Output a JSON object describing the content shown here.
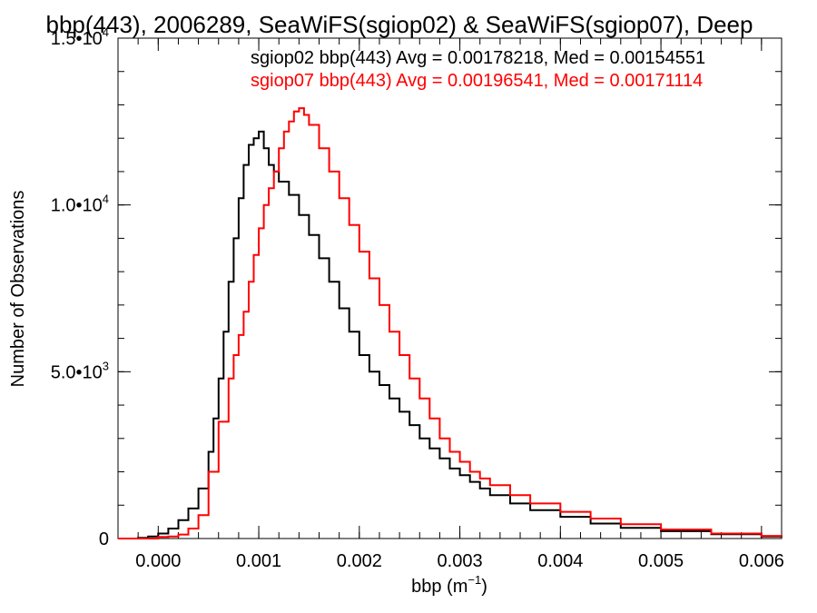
{
  "chart_data": {
    "type": "line",
    "title": "bbp(443), 2006289, SeaWiFS(sgiop02) & SeaWiFS(sgiop07), Deep",
    "xlabel_main": "bbp (m",
    "xlabel_sup": "−1",
    "xlabel_close": ")",
    "ylabel": "Number of Observations",
    "xlim": [
      -0.0004,
      0.0062
    ],
    "ylim": [
      0,
      15000
    ],
    "x_ticks": [
      {
        "value": 0.0,
        "label": "0.000"
      },
      {
        "value": 0.001,
        "label": "0.001"
      },
      {
        "value": 0.002,
        "label": "0.002"
      },
      {
        "value": 0.003,
        "label": "0.003"
      },
      {
        "value": 0.004,
        "label": "0.004"
      },
      {
        "value": 0.005,
        "label": "0.005"
      },
      {
        "value": 0.006,
        "label": "0.006"
      }
    ],
    "y_ticks": [
      {
        "value": 0,
        "base": "0",
        "exp": ""
      },
      {
        "value": 5000,
        "base": "5.0•10",
        "exp": "3"
      },
      {
        "value": 10000,
        "base": "1.0•10",
        "exp": "4"
      },
      {
        "value": 15000,
        "base": "1.5•10",
        "exp": "4"
      }
    ],
    "legend_position": "top-right",
    "series": [
      {
        "name": "sgiop02",
        "color": "#000000",
        "stats_label": "sgiop02 bbp(443) Avg = 0.00178218, Med = 0.00154551",
        "x": [
          -0.0004,
          -0.0003,
          -0.0002,
          -0.0001,
          0.0,
          0.0001,
          0.0002,
          0.0003,
          0.0004,
          0.0005,
          0.00055,
          0.0006,
          0.00065,
          0.0007,
          0.00075,
          0.0008,
          0.00085,
          0.0009,
          0.00095,
          0.001,
          0.00105,
          0.0011,
          0.00115,
          0.0012,
          0.0013,
          0.0014,
          0.0015,
          0.0016,
          0.0017,
          0.0018,
          0.0019,
          0.002,
          0.0021,
          0.0022,
          0.0023,
          0.0024,
          0.0025,
          0.0026,
          0.0027,
          0.0028,
          0.0029,
          0.003,
          0.0031,
          0.0032,
          0.0033,
          0.0035,
          0.0037,
          0.004,
          0.0043,
          0.0046,
          0.005,
          0.0055,
          0.006,
          0.0062
        ],
        "y": [
          0,
          0,
          20,
          60,
          150,
          300,
          550,
          900,
          1500,
          2600,
          3600,
          4800,
          6200,
          7700,
          9000,
          10200,
          11200,
          11800,
          12000,
          12200,
          11700,
          11200,
          11000,
          10700,
          10300,
          9700,
          9100,
          8400,
          7700,
          6900,
          6200,
          5500,
          5000,
          4600,
          4200,
          3800,
          3400,
          3000,
          2700,
          2400,
          2100,
          1900,
          1700,
          1500,
          1300,
          1050,
          850,
          650,
          450,
          320,
          220,
          130,
          60,
          40
        ]
      },
      {
        "name": "sgiop07",
        "color": "#ff0000",
        "stats_label": "sgiop07 bbp(443) Avg = 0.00196541, Med = 0.00171114",
        "x": [
          -0.0004,
          -0.0003,
          -0.0002,
          -0.0001,
          0.0,
          0.0001,
          0.0002,
          0.0003,
          0.0004,
          0.0005,
          0.0006,
          0.0007,
          0.00075,
          0.0008,
          0.00085,
          0.0009,
          0.00095,
          0.001,
          0.00105,
          0.0011,
          0.00115,
          0.0012,
          0.00125,
          0.0013,
          0.00135,
          0.0014,
          0.00145,
          0.0015,
          0.0016,
          0.0017,
          0.0018,
          0.0019,
          0.002,
          0.0021,
          0.0022,
          0.0023,
          0.0024,
          0.0025,
          0.0026,
          0.0027,
          0.0028,
          0.0029,
          0.003,
          0.0031,
          0.0032,
          0.0033,
          0.0035,
          0.0037,
          0.004,
          0.0043,
          0.0046,
          0.005,
          0.0055,
          0.006,
          0.0062
        ],
        "y": [
          0,
          0,
          0,
          0,
          50,
          60,
          120,
          300,
          700,
          2000,
          3500,
          4800,
          5500,
          6100,
          6800,
          7700,
          8500,
          9300,
          10000,
          10500,
          11000,
          11700,
          12200,
          12500,
          12800,
          12900,
          12700,
          12400,
          11700,
          11000,
          10200,
          9400,
          8600,
          7800,
          7000,
          6200,
          5500,
          4800,
          4200,
          3600,
          3000,
          2600,
          2300,
          2000,
          1800,
          1600,
          1300,
          1050,
          800,
          600,
          430,
          270,
          150,
          80,
          60
        ]
      }
    ]
  }
}
